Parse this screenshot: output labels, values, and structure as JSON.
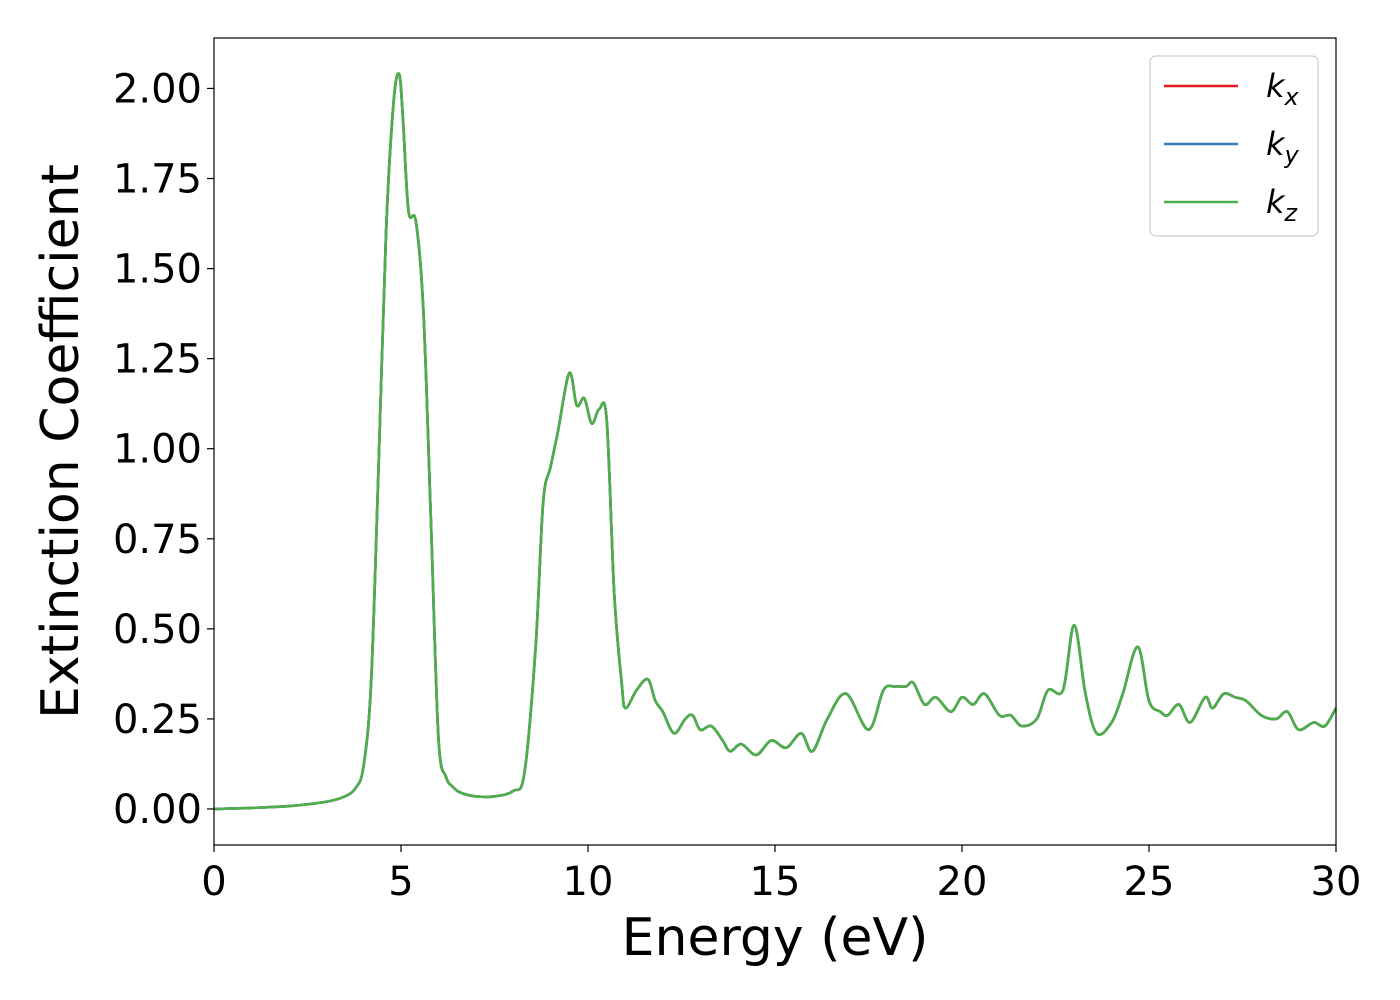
{
  "chart_data": {
    "type": "line",
    "xlabel": "Energy (eV)",
    "ylabel": "Extinction Coefficient",
    "xlim": [
      0,
      30
    ],
    "ylim": [
      -0.1,
      2.14
    ],
    "x_ticks": [
      0,
      5,
      10,
      15,
      20,
      25,
      30
    ],
    "x_tick_labels": [
      "0",
      "5",
      "10",
      "15",
      "20",
      "25",
      "30"
    ],
    "y_ticks": [
      0,
      0.25,
      0.5,
      0.75,
      1.0,
      1.25,
      1.5,
      1.75,
      2.0
    ],
    "y_tick_labels": [
      "0.00",
      "0.25",
      "0.50",
      "0.75",
      "1.00",
      "1.25",
      "1.50",
      "1.75",
      "2.00"
    ],
    "grid": false,
    "legend_position": "top-right",
    "x": [
      0,
      1,
      2,
      3,
      3.5,
      3.8,
      4.0,
      4.2,
      4.4,
      4.6,
      4.8,
      4.95,
      5.05,
      5.2,
      5.4,
      5.6,
      5.8,
      6.0,
      6.2,
      6.4,
      6.6,
      7.0,
      7.5,
      8.0,
      8.3,
      8.6,
      8.8,
      9.0,
      9.2,
      9.5,
      9.7,
      9.9,
      10.1,
      10.3,
      10.5,
      10.7,
      10.9,
      11.0,
      11.3,
      11.6,
      11.8,
      12.0,
      12.3,
      12.6,
      12.8,
      13.0,
      13.3,
      13.6,
      13.8,
      14.1,
      14.5,
      14.9,
      15.3,
      15.7,
      16.0,
      16.4,
      16.9,
      17.5,
      17.9,
      18.2,
      18.5,
      18.7,
      19.0,
      19.3,
      19.7,
      20.0,
      20.3,
      20.6,
      21.0,
      21.3,
      21.6,
      22.0,
      22.3,
      22.7,
      23.0,
      23.3,
      23.6,
      24.0,
      24.3,
      24.7,
      25.0,
      25.3,
      25.5,
      25.8,
      26.1,
      26.5,
      26.7,
      27.0,
      27.3,
      27.6,
      28.0,
      28.4,
      28.7,
      29.0,
      29.4,
      29.7,
      30.0
    ],
    "series": [
      {
        "name": "k_x",
        "color": "#e41a1c",
        "values": [
          0.0,
          0.003,
          0.008,
          0.02,
          0.035,
          0.06,
          0.12,
          0.35,
          0.95,
          1.6,
          1.96,
          2.04,
          1.92,
          1.66,
          1.63,
          1.38,
          0.8,
          0.2,
          0.09,
          0.06,
          0.045,
          0.035,
          0.035,
          0.05,
          0.1,
          0.45,
          0.85,
          0.95,
          1.05,
          1.21,
          1.12,
          1.14,
          1.07,
          1.11,
          1.08,
          0.6,
          0.35,
          0.28,
          0.33,
          0.36,
          0.3,
          0.27,
          0.21,
          0.25,
          0.26,
          0.22,
          0.23,
          0.19,
          0.16,
          0.18,
          0.15,
          0.19,
          0.17,
          0.21,
          0.16,
          0.25,
          0.32,
          0.22,
          0.33,
          0.34,
          0.34,
          0.35,
          0.29,
          0.31,
          0.27,
          0.31,
          0.29,
          0.32,
          0.26,
          0.26,
          0.23,
          0.25,
          0.33,
          0.33,
          0.51,
          0.32,
          0.21,
          0.24,
          0.32,
          0.45,
          0.3,
          0.27,
          0.26,
          0.29,
          0.24,
          0.31,
          0.28,
          0.32,
          0.31,
          0.3,
          0.26,
          0.25,
          0.27,
          0.22,
          0.24,
          0.23,
          0.28
        ]
      },
      {
        "name": "k_y",
        "color": "#377eb8",
        "values": [
          0.0,
          0.003,
          0.008,
          0.02,
          0.035,
          0.06,
          0.12,
          0.35,
          0.95,
          1.6,
          1.96,
          2.04,
          1.92,
          1.66,
          1.63,
          1.38,
          0.8,
          0.2,
          0.09,
          0.06,
          0.045,
          0.035,
          0.035,
          0.05,
          0.1,
          0.45,
          0.85,
          0.95,
          1.05,
          1.21,
          1.12,
          1.14,
          1.07,
          1.11,
          1.08,
          0.6,
          0.35,
          0.28,
          0.33,
          0.36,
          0.3,
          0.27,
          0.21,
          0.25,
          0.26,
          0.22,
          0.23,
          0.19,
          0.16,
          0.18,
          0.15,
          0.19,
          0.17,
          0.21,
          0.16,
          0.25,
          0.32,
          0.22,
          0.33,
          0.34,
          0.34,
          0.35,
          0.29,
          0.31,
          0.27,
          0.31,
          0.29,
          0.32,
          0.26,
          0.26,
          0.23,
          0.25,
          0.33,
          0.33,
          0.51,
          0.32,
          0.21,
          0.24,
          0.32,
          0.45,
          0.3,
          0.27,
          0.26,
          0.29,
          0.24,
          0.31,
          0.28,
          0.32,
          0.31,
          0.3,
          0.26,
          0.25,
          0.27,
          0.22,
          0.24,
          0.23,
          0.28
        ]
      },
      {
        "name": "k_z",
        "color": "#4daf4a",
        "values": [
          0.0,
          0.003,
          0.008,
          0.02,
          0.035,
          0.06,
          0.12,
          0.35,
          0.95,
          1.6,
          1.96,
          2.04,
          1.92,
          1.66,
          1.63,
          1.38,
          0.8,
          0.2,
          0.09,
          0.06,
          0.045,
          0.035,
          0.035,
          0.05,
          0.1,
          0.45,
          0.85,
          0.95,
          1.05,
          1.21,
          1.12,
          1.14,
          1.07,
          1.11,
          1.08,
          0.6,
          0.35,
          0.28,
          0.33,
          0.36,
          0.3,
          0.27,
          0.21,
          0.25,
          0.26,
          0.22,
          0.23,
          0.19,
          0.16,
          0.18,
          0.15,
          0.19,
          0.17,
          0.21,
          0.16,
          0.25,
          0.32,
          0.22,
          0.33,
          0.34,
          0.34,
          0.35,
          0.29,
          0.31,
          0.27,
          0.31,
          0.29,
          0.32,
          0.26,
          0.26,
          0.23,
          0.25,
          0.33,
          0.33,
          0.51,
          0.32,
          0.21,
          0.24,
          0.32,
          0.45,
          0.3,
          0.27,
          0.26,
          0.29,
          0.24,
          0.31,
          0.28,
          0.32,
          0.31,
          0.3,
          0.26,
          0.25,
          0.27,
          0.22,
          0.24,
          0.23,
          0.28
        ]
      }
    ],
    "legend": [
      {
        "base": "k",
        "sub": "x",
        "color": "#e41a1c"
      },
      {
        "base": "k",
        "sub": "y",
        "color": "#377eb8"
      },
      {
        "base": "k",
        "sub": "z",
        "color": "#4daf4a"
      }
    ]
  }
}
